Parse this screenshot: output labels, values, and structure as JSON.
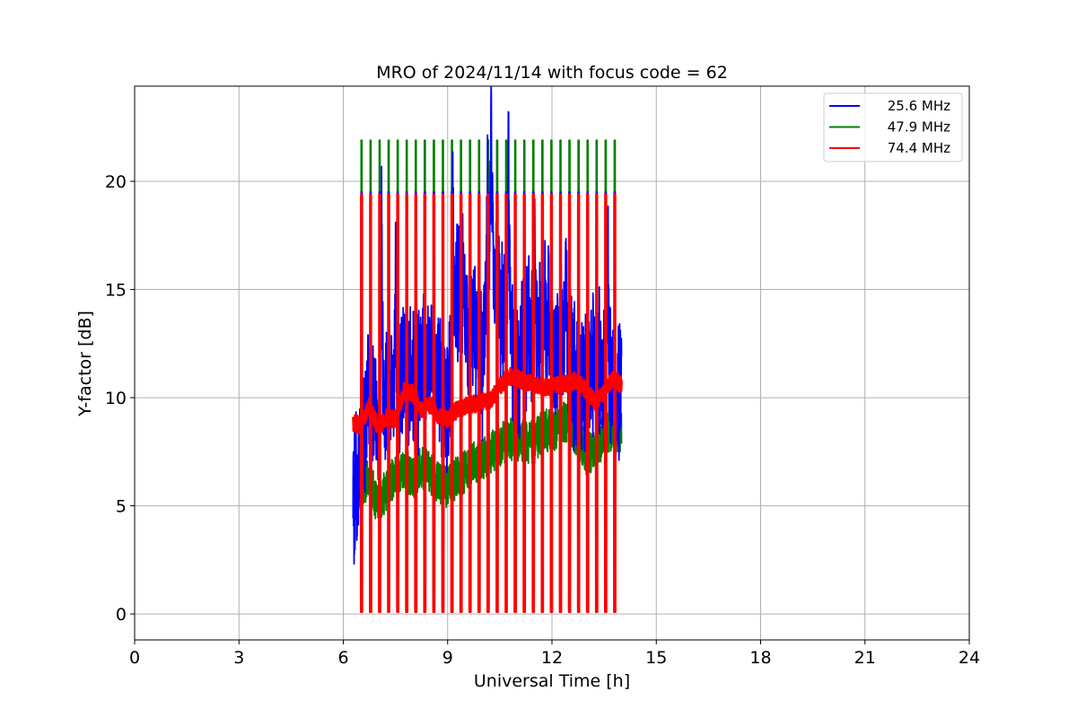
{
  "chart_data": {
    "type": "line",
    "title": "MRO of 2024/11/14 with focus code = 62",
    "xlabel": "Universal Time [h]",
    "ylabel": "Y-factor [dB]",
    "xlim": [
      0,
      24
    ],
    "ylim": [
      -1.2,
      24.4
    ],
    "xticks": [
      0,
      3,
      6,
      9,
      12,
      15,
      18,
      21,
      24
    ],
    "yticks": [
      0,
      5,
      10,
      15,
      20
    ],
    "grid": true,
    "legend_position": "top-right",
    "cycle_times_h": [
      6.25,
      6.51,
      6.77,
      7.03,
      7.29,
      7.55,
      7.81,
      8.07,
      8.33,
      8.59,
      8.85,
      9.11,
      9.37,
      9.63,
      9.89,
      10.15,
      10.41,
      10.67,
      10.93,
      11.19,
      11.45,
      11.71,
      11.97,
      12.23,
      12.49,
      12.75,
      13.01,
      13.27,
      13.53,
      13.79
    ],
    "series": [
      {
        "name": "25.6 MHz",
        "color": "#0000ff",
        "x": [
          6.25,
          6.5,
          6.75,
          7.0,
          7.25,
          7.5,
          7.75,
          8.0,
          8.25,
          8.5,
          8.75,
          9.0,
          9.25,
          9.5,
          9.75,
          10.0,
          10.25,
          10.5,
          10.75,
          11.0,
          11.25,
          11.5,
          11.75,
          12.0,
          12.25,
          12.5,
          12.75,
          13.0,
          13.25,
          13.5,
          13.75,
          14.0
        ],
        "y": [
          5.2,
          7.0,
          9.5,
          8.0,
          10.5,
          9.5,
          11.5,
          10.8,
          11.2,
          12.0,
          11.0,
          9.5,
          15.5,
          14.0,
          13.0,
          11.5,
          17.5,
          14.0,
          13.5,
          11.0,
          13.0,
          12.5,
          14.0,
          11.5,
          13.0,
          12.0,
          10.5,
          11.0,
          12.0,
          10.5,
          11.0,
          10.0
        ],
        "peaks": [
          [
            6.7,
            11.0
          ],
          [
            7.1,
            20.5
          ],
          [
            7.5,
            16.0
          ],
          [
            8.1,
            15.2
          ],
          [
            9.15,
            19.0
          ],
          [
            9.45,
            17.5
          ],
          [
            10.15,
            22.3
          ],
          [
            10.25,
            23.3
          ],
          [
            10.75,
            23.1
          ],
          [
            11.5,
            17.5
          ],
          [
            11.9,
            17.0
          ],
          [
            12.4,
            16.0
          ],
          [
            13.6,
            18.0
          ]
        ],
        "spread": 2.8
      },
      {
        "name": "47.9 MHz",
        "color": "#008000",
        "x": [
          6.25,
          6.5,
          6.75,
          7.0,
          7.25,
          7.5,
          7.75,
          8.0,
          8.25,
          8.5,
          8.75,
          9.0,
          9.25,
          9.5,
          9.75,
          10.0,
          10.25,
          10.5,
          10.75,
          11.0,
          11.25,
          11.5,
          11.75,
          12.0,
          12.25,
          12.5,
          12.75,
          13.0,
          13.25,
          13.5,
          13.75,
          14.0
        ],
        "y": [
          5.5,
          5.8,
          6.2,
          5.0,
          5.8,
          6.5,
          6.8,
          6.2,
          6.8,
          6.5,
          6.0,
          5.9,
          6.3,
          6.6,
          7.0,
          7.2,
          7.5,
          7.8,
          8.1,
          8.0,
          8.0,
          7.9,
          8.6,
          8.4,
          8.8,
          8.9,
          8.1,
          7.4,
          7.6,
          8.3,
          8.6,
          8.4
        ],
        "cal_high": 21.9,
        "spread": 1.0
      },
      {
        "name": "74.4 MHz",
        "color": "#ff0000",
        "x": [
          6.25,
          6.5,
          6.75,
          7.0,
          7.25,
          7.5,
          7.75,
          8.0,
          8.25,
          8.5,
          8.75,
          9.0,
          9.25,
          9.5,
          9.75,
          10.0,
          10.25,
          10.5,
          10.75,
          11.0,
          11.25,
          11.5,
          11.75,
          12.0,
          12.25,
          12.5,
          12.75,
          13.0,
          13.25,
          13.5,
          13.75,
          14.0
        ],
        "y": [
          8.9,
          8.7,
          9.6,
          8.6,
          9.1,
          9.0,
          10.3,
          10.2,
          9.4,
          9.7,
          9.1,
          9.0,
          9.4,
          9.6,
          9.7,
          9.8,
          9.9,
          10.5,
          11.0,
          10.9,
          10.7,
          10.6,
          10.5,
          10.5,
          10.6,
          10.7,
          10.8,
          10.3,
          9.8,
          10.2,
          10.9,
          10.6
        ],
        "cal_high": 19.4,
        "spread": 0.4
      }
    ]
  }
}
